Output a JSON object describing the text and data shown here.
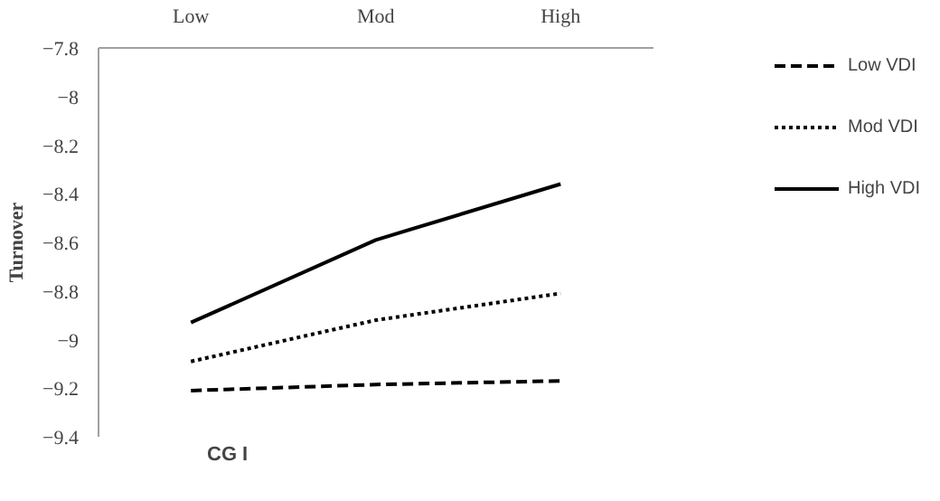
{
  "chart_data": {
    "type": "line",
    "xlabel": "CG I",
    "ylabel": "Turnover",
    "categories": [
      "Low",
      "Mod",
      "High"
    ],
    "series": [
      {
        "name": "Low VDI",
        "color": "#000000",
        "line_style": "dashed",
        "values": [
          -9.21,
          -9.185,
          -9.17
        ]
      },
      {
        "name": "Mod VDI",
        "color": "#000000",
        "line_style": "dotted",
        "values": [
          -9.09,
          -8.92,
          -8.81
        ]
      },
      {
        "name": "High VDI",
        "color": "#000000",
        "line_style": "solid",
        "values": [
          -8.93,
          -8.59,
          -8.36
        ]
      }
    ],
    "ylim": [
      -9.4,
      -7.8
    ],
    "yticks": [
      -9.4,
      -9.2,
      -9,
      -8.8,
      -8.6,
      -8.4,
      -8.2,
      -8,
      -7.8
    ],
    "grid": false,
    "legend": "right",
    "marker": "none"
  }
}
